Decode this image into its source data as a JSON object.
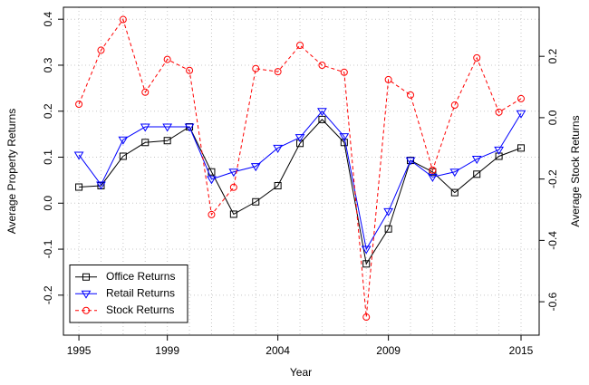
{
  "chart_data": {
    "type": "line",
    "xlabel": "Year",
    "ylabel": "Average Property Returns",
    "y2label": "Average Stock Returns",
    "x": [
      1995,
      1996,
      1997,
      1998,
      1999,
      2000,
      2001,
      2002,
      2003,
      2004,
      2005,
      2006,
      2007,
      2008,
      2009,
      2010,
      2011,
      2012,
      2013,
      2014,
      2015
    ],
    "xlim": [
      1994.3,
      2015.82
    ],
    "xticks": [
      1995,
      1999,
      2004,
      2009,
      2015
    ],
    "ylim": [
      -0.287,
      0.426
    ],
    "yticks": [
      -0.2,
      -0.1,
      {
        "value": 0,
        "label": "0.0"
      },
      0.1,
      0.2,
      0.3,
      0.4
    ],
    "y2lim": [
      -0.709,
      0.36
    ],
    "y2ticks": [
      -0.6,
      -0.4,
      -0.2,
      {
        "value": 0,
        "label": "0.0"
      },
      0.2
    ],
    "grid": true,
    "legend_position": "bottomleft",
    "series": [
      {
        "name": "Office Returns",
        "color": "#000000",
        "marker": "square",
        "dashed": false,
        "values": [
          0.035,
          0.038,
          0.102,
          0.132,
          0.136,
          0.166,
          0.068,
          -0.024,
          0.003,
          0.038,
          0.13,
          0.182,
          0.132,
          -0.132,
          -0.056,
          0.093,
          0.068,
          0.023,
          0.063,
          0.102,
          0.12
        ]
      },
      {
        "name": "Retail Returns",
        "color": "#0000ff",
        "marker": "triangle-down",
        "dashed": false,
        "values": [
          0.105,
          0.04,
          0.138,
          0.166,
          0.166,
          0.166,
          0.052,
          0.068,
          0.08,
          0.12,
          0.143,
          0.2,
          0.145,
          -0.1,
          -0.018,
          0.093,
          0.057,
          0.068,
          0.096,
          0.116,
          0.195
        ]
      },
      {
        "name": "Stock Returns",
        "color": "#ff0000",
        "marker": "circle",
        "dashed": true,
        "axis": "y2",
        "values": [
          0.044,
          0.22,
          0.32,
          0.083,
          0.19,
          0.154,
          -0.316,
          -0.227,
          0.16,
          0.15,
          0.236,
          0.171,
          0.148,
          -0.65,
          0.124,
          0.074,
          -0.171,
          0.041,
          0.195,
          0.018,
          0.062
        ]
      }
    ]
  }
}
